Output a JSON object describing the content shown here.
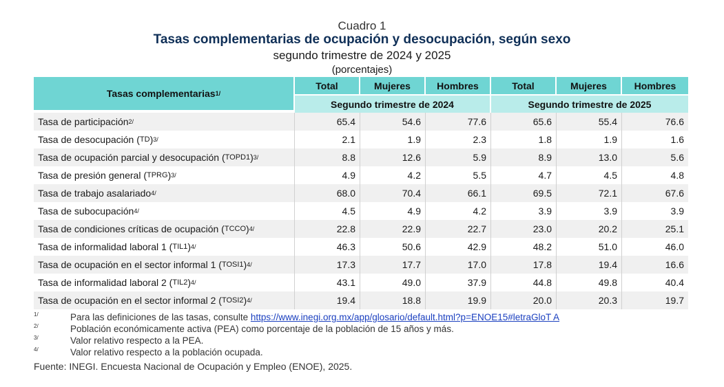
{
  "header": {
    "cuadro": "Cuadro 1",
    "title": "Tasas complementarias de ocupación y desocupación, según sexo",
    "subtitle": "segundo trimestre de 2024 y 2025",
    "unit": "(porcentajes)"
  },
  "table": {
    "label_header": "Tasas complementarias",
    "label_header_sup": "1/",
    "columns": [
      "Total",
      "Mujeres",
      "Hombres",
      "Total",
      "Mujeres",
      "Hombres"
    ],
    "periods": [
      "Segundo trimestre de 2024",
      "Segundo trimestre de 2025"
    ],
    "rows": [
      {
        "label": "Tasa de participación",
        "abbr": "",
        "sup": "2/",
        "values": [
          "65.4",
          "54.6",
          "77.6",
          "65.6",
          "55.4",
          "76.6"
        ]
      },
      {
        "label": "Tasa de desocupación",
        "abbr": "TD",
        "sup": "3/",
        "values": [
          "2.1",
          "1.9",
          "2.3",
          "1.8",
          "1.9",
          "1.6"
        ]
      },
      {
        "label": "Tasa de ocupación parcial y desocupación",
        "abbr": "TOPD1",
        "sup": "3/",
        "values": [
          "8.8",
          "12.6",
          "5.9",
          "8.9",
          "13.0",
          "5.6"
        ]
      },
      {
        "label": "Tasa de presión general",
        "abbr": "TPRG",
        "sup": "3/",
        "values": [
          "4.9",
          "4.2",
          "5.5",
          "4.7",
          "4.5",
          "4.8"
        ]
      },
      {
        "label": "Tasa de trabajo asalariado",
        "abbr": "",
        "sup": "4/",
        "values": [
          "68.0",
          "70.4",
          "66.1",
          "69.5",
          "72.1",
          "67.6"
        ]
      },
      {
        "label": "Tasa de subocupación",
        "abbr": "",
        "sup": "4/",
        "values": [
          "4.5",
          "4.9",
          "4.2",
          "3.9",
          "3.9",
          "3.9"
        ]
      },
      {
        "label": "Tasa de condiciones críticas de ocupación",
        "abbr": "TCCO",
        "sup": "4/",
        "values": [
          "22.8",
          "22.9",
          "22.7",
          "23.0",
          "20.2",
          "25.1"
        ]
      },
      {
        "label": "Tasa de informalidad laboral 1",
        "abbr": "TIL1",
        "sup": "4/",
        "values": [
          "46.3",
          "50.6",
          "42.9",
          "48.2",
          "51.0",
          "46.0"
        ]
      },
      {
        "label": "Tasa de ocupación en el sector informal 1",
        "abbr": "TOSI1",
        "sup": "4/",
        "values": [
          "17.3",
          "17.7",
          "17.0",
          "17.8",
          "19.4",
          "16.6"
        ]
      },
      {
        "label": "Tasa de informalidad laboral 2",
        "abbr": "TIL2",
        "sup": "4/",
        "values": [
          "43.1",
          "49.0",
          "37.9",
          "44.8",
          "49.8",
          "40.4"
        ]
      },
      {
        "label": "Tasa de ocupación en el sector informal 2",
        "abbr": "TOSI2",
        "sup": "4/",
        "values": [
          "19.4",
          "18.8",
          "19.9",
          "20.0",
          "20.3",
          "19.7"
        ]
      }
    ]
  },
  "notes": [
    {
      "ref": "1/",
      "text": "Para las definiciones de las tasas, consulte ",
      "link": "https://www.inegi.org.mx/app/glosario/default.html?p=ENOE15#letraGloT A"
    },
    {
      "ref": "2/",
      "text": "Población económicamente activa (PEA) como porcentaje de la población de 15 años y más.",
      "link": ""
    },
    {
      "ref": "3/",
      "text": "Valor relativo respecto a la PEA.",
      "link": ""
    },
    {
      "ref": "4/",
      "text": "Valor relativo respecto a la población ocupada.",
      "link": ""
    }
  ],
  "source": "Fuente: INEGI. Encuesta Nacional de Ocupación y Empleo (ENOE), 2025.",
  "colors": {
    "header_dark": "#6fd5d3",
    "header_light": "#b9ecea",
    "title": "#0f2f57",
    "row_shade": "#f0f0f0",
    "link": "#1a3fbf"
  }
}
